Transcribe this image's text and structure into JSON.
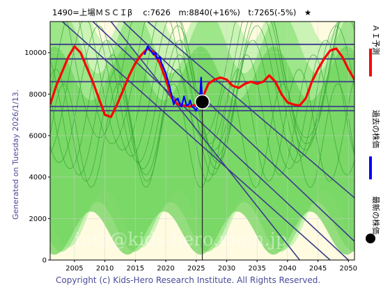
{
  "chart_data": {
    "type": "line",
    "title": "1490=上場ＭＳＣＩβ　 c:7626　m:8840(+16%)　t:7265(-5%)　★",
    "side_text": "Generated on Tuesday 2026/1/13.",
    "footer": "Copyright (c) Kids-Hero Research Institute. All Rights Reserved.",
    "watermark": "info@kids-hero.main.jp",
    "xlim": [
      2001,
      2051
    ],
    "ylim": [
      0,
      11500
    ],
    "x_ticks": [
      2005,
      2010,
      2015,
      2020,
      2025,
      2030,
      2035,
      2040,
      2045,
      2050
    ],
    "y_ticks": [
      0,
      2000,
      4000,
      6000,
      8000,
      10000
    ],
    "legend": [
      {
        "label": "ＡＩ予測",
        "color": "#ff0000"
      },
      {
        "label": "過去の株価",
        "color": "#0000ff"
      },
      {
        "label": "最新の株価",
        "color": "#000000"
      }
    ],
    "series": [
      {
        "name": "ＡＩ予測",
        "color": "#ff0000",
        "x": [
          2001,
          2002,
          2003,
          2004,
          2005,
          2006,
          2007,
          2008,
          2009,
          2010,
          2011,
          2012,
          2013,
          2014,
          2015,
          2016,
          2017,
          2018,
          2019,
          2020,
          2021,
          2022,
          2023,
          2024,
          2025,
          2026,
          2027,
          2028,
          2029,
          2030,
          2031,
          2032,
          2033,
          2034,
          2035,
          2036,
          2037,
          2038,
          2039,
          2040,
          2041,
          2042,
          2043,
          2044,
          2045,
          2046,
          2047,
          2048,
          2049,
          2050,
          2051
        ],
        "y": [
          7500,
          8400,
          9100,
          9800,
          10300,
          10000,
          9300,
          8600,
          7800,
          7000,
          6900,
          7500,
          8200,
          8900,
          9500,
          9900,
          10200,
          10000,
          9500,
          8700,
          7800,
          7500,
          7450,
          7400,
          7500,
          7800,
          8500,
          8700,
          8800,
          8700,
          8400,
          8300,
          8500,
          8600,
          8500,
          8600,
          8900,
          8600,
          8000,
          7600,
          7500,
          7450,
          7800,
          8600,
          9200,
          9700,
          10100,
          10200,
          9800,
          9200,
          8700
        ]
      },
      {
        "name": "過去の株価",
        "color": "#0000ff",
        "x": [
          2016.5,
          2017,
          2017.5,
          2018,
          2018.3,
          2018.6,
          2019,
          2019.3,
          2019.6,
          2020,
          2020.3,
          2020.6,
          2021,
          2021.3,
          2021.6,
          2022,
          2022.3,
          2022.6,
          2023,
          2023.4,
          2023.8,
          2024,
          2024.3,
          2024.6,
          2025,
          2025.3,
          2025.6,
          2025.8,
          2026
        ],
        "y": [
          9900,
          10300,
          10100,
          9900,
          10000,
          9700,
          9800,
          9500,
          9300,
          9000,
          8700,
          8400,
          7900,
          7500,
          7700,
          7800,
          7500,
          7400,
          7900,
          7450,
          7500,
          7700,
          7400,
          7350,
          7200,
          7500,
          7700,
          8800,
          7626
        ]
      }
    ],
    "latest": {
      "x": 2026,
      "y": 7626
    },
    "horizontal_lines": [
      10400,
      9700,
      8600,
      7400,
      7200
    ],
    "vertical_line": 2026,
    "channel_lines": [
      {
        "x1": 2003,
        "y1": 11500,
        "x2": 2047,
        "y2": 0
      },
      {
        "x1": 2008,
        "y1": 11500,
        "x2": 2050,
        "y2": 0
      },
      {
        "x1": 2013,
        "y1": 11500,
        "x2": 2051,
        "y2": 900
      },
      {
        "x1": 2017,
        "y1": 11500,
        "x2": 2051,
        "y2": 3000
      },
      {
        "x1": 2011,
        "y1": 11500,
        "x2": 2042,
        "y2": 0
      }
    ]
  }
}
